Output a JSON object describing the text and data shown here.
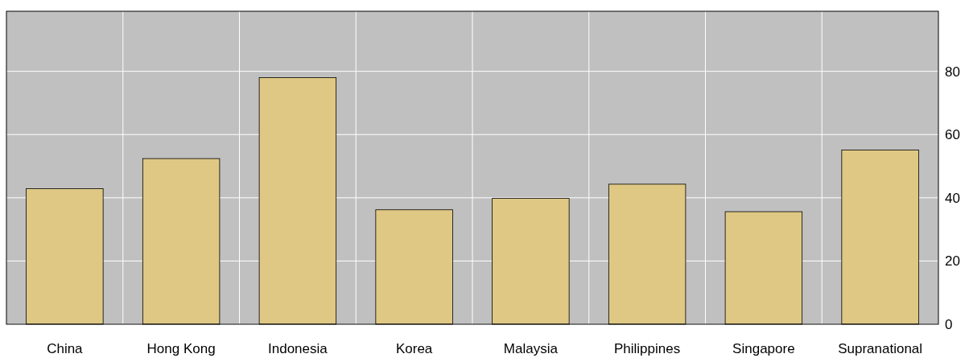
{
  "chart_data": {
    "type": "bar",
    "categories": [
      "China",
      "Hong Kong",
      "Indonesia",
      "Korea",
      "Malaysia",
      "Philippines",
      "Singapore",
      "Supranational"
    ],
    "values": [
      42.9,
      52.4,
      78.0,
      36.2,
      39.8,
      44.3,
      35.6,
      55.1
    ],
    "color": "#dfc884",
    "ylim": [
      0,
      99
    ],
    "yticks": [
      0,
      20,
      40,
      60,
      80
    ],
    "grid": true
  }
}
